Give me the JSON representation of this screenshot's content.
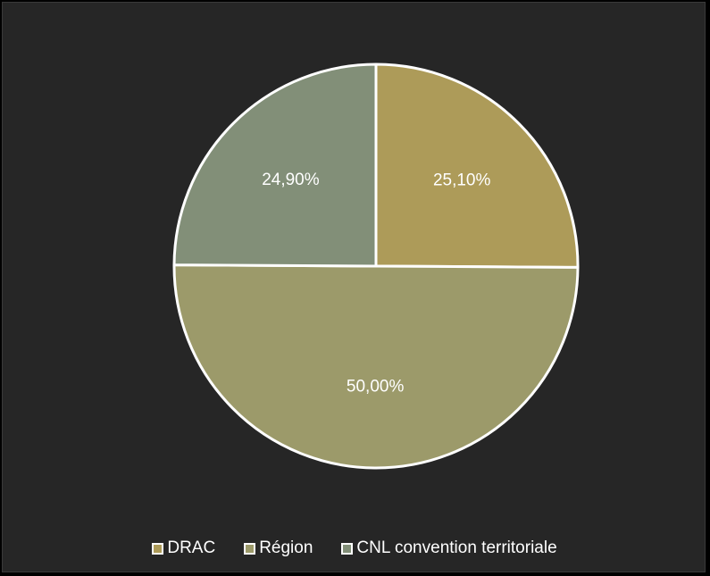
{
  "chart_data": {
    "type": "pie",
    "title": "",
    "start_angle_deg": 0,
    "direction": "clockwise",
    "legend_position": "bottom",
    "slices": [
      {
        "name": "DRAC",
        "value": 25.1,
        "label": "25,10%",
        "color": "#ad9b59"
      },
      {
        "name": "Région",
        "value": 50.0,
        "label": "50,00%",
        "color": "#9c9a6a"
      },
      {
        "name": "CNL convention territoriale",
        "value": 24.9,
        "label": "24,90%",
        "color": "#828f78"
      }
    ]
  },
  "colors": {
    "background": "#262626",
    "slice_border": "#ffffff",
    "text": "#ffffff"
  }
}
